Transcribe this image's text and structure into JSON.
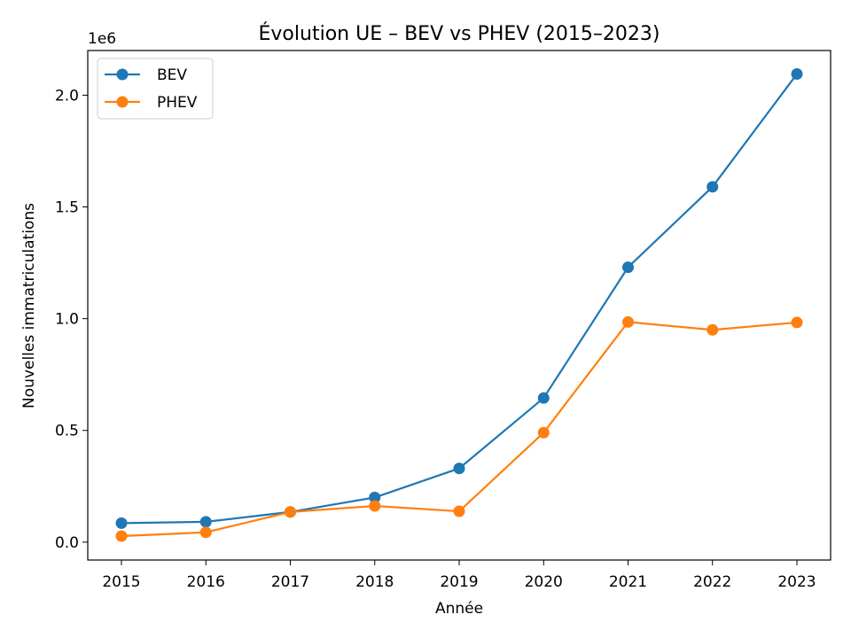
{
  "chart_data": {
    "type": "line",
    "title": "Évolution UE – BEV vs PHEV (2015–2023)",
    "xlabel": "Année",
    "ylabel": "Nouvelles immatriculations",
    "y_offset_text": "1e6",
    "x": [
      "2015",
      "2016",
      "2017",
      "2018",
      "2019",
      "2020",
      "2021",
      "2022",
      "2023"
    ],
    "y_ticks": [
      "0.0",
      "0.5",
      "1.0",
      "1.5",
      "2.0"
    ],
    "y_tick_values": [
      0,
      500000,
      1000000,
      1500000,
      2000000
    ],
    "ylim": [
      -80000,
      2200000
    ],
    "grid": false,
    "legend_position": "upper-left",
    "series": [
      {
        "name": "BEV",
        "color": "#1f77b4",
        "values": [
          85000,
          91000,
          135000,
          200000,
          330000,
          645000,
          1230000,
          1590000,
          2095000
        ]
      },
      {
        "name": "PHEV",
        "color": "#ff7f0e",
        "values": [
          27000,
          44000,
          135000,
          162000,
          138000,
          490000,
          985000,
          950000,
          983000
        ]
      }
    ]
  }
}
